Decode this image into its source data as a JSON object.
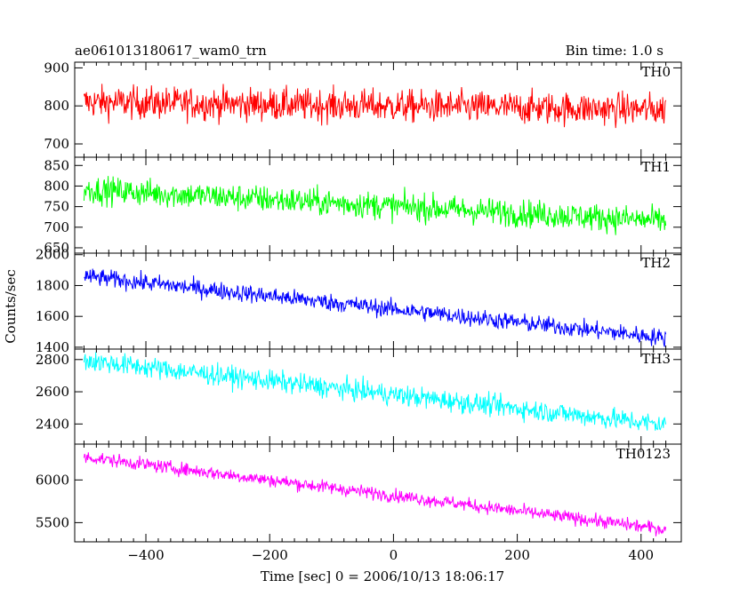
{
  "chart_data": {
    "type": "line",
    "title": "ae061013180617_wam0_trn",
    "bin_time_label": "Bin time: 1.0 s",
    "xlabel": "Time [sec] 0 = 2006/10/13 18:06:17",
    "ylabel": "Counts/sec",
    "xlim": [
      -515,
      465
    ],
    "xticks": [
      -400,
      -200,
      0,
      200,
      400
    ],
    "x_range": [
      -500,
      440
    ],
    "panels": [
      {
        "name": "TH0",
        "color": "#ff0000",
        "ylim": [
          665,
          915
        ],
        "yticks": [
          700,
          800,
          900
        ],
        "trend": [
          [
            -500,
            810
          ],
          [
            440,
            790
          ]
        ],
        "noise": 36
      },
      {
        "name": "TH1",
        "color": "#00ff00",
        "ylim": [
          637,
          870
        ],
        "yticks": [
          650,
          700,
          750,
          800,
          850
        ],
        "trend": [
          [
            -500,
            792
          ],
          [
            440,
            715
          ]
        ],
        "noise": 28
      },
      {
        "name": "TH2",
        "color": "#0000ff",
        "ylim": [
          1388,
          2010
        ],
        "yticks": [
          1400,
          1600,
          1800,
          2000
        ],
        "trend": [
          [
            -500,
            1860
          ],
          [
            440,
            1460
          ]
        ],
        "noise": 48
      },
      {
        "name": "TH3",
        "color": "#00ffff",
        "ylim": [
          2275,
          2865
        ],
        "yticks": [
          2400,
          2600,
          2800
        ],
        "trend": [
          [
            -500,
            2795
          ],
          [
            440,
            2395
          ]
        ],
        "noise": 55
      },
      {
        "name": "TH0123",
        "color": "#ff00ff",
        "ylim": [
          5275,
          6420
        ],
        "yticks": [
          5500,
          6000
        ],
        "trend": [
          [
            -500,
            6270
          ],
          [
            440,
            5420
          ]
        ],
        "noise": 65
      }
    ]
  }
}
